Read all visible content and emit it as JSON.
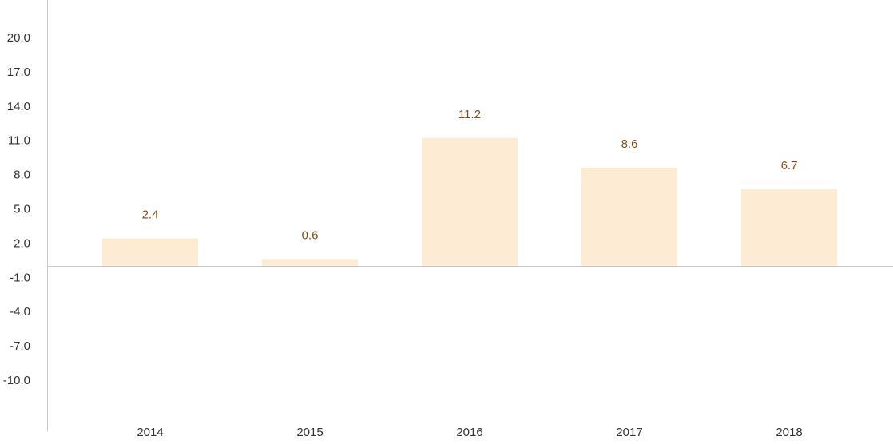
{
  "colors": {
    "bar": "#fdebd3",
    "data_label": "#8a4b14",
    "axis": "#c8c8c8",
    "text": "#333333"
  },
  "chart_data": {
    "type": "bar",
    "title": "",
    "xlabel": "",
    "ylabel": "",
    "categories": [
      "2014",
      "2015",
      "2016",
      "2017",
      "2018"
    ],
    "values": [
      2.4,
      0.6,
      11.2,
      8.6,
      6.7
    ],
    "data_labels": [
      "2.4",
      "0.6",
      "11.2",
      "8.6",
      "6.7"
    ],
    "yticks": [
      20.0,
      17.0,
      14.0,
      11.0,
      8.0,
      5.0,
      2.0,
      -1.0,
      -4.0,
      -7.0,
      -10.0
    ],
    "ytick_labels": [
      "20.0",
      "17.0",
      "14.0",
      "11.0",
      "8.0",
      "5.0",
      "2.0",
      "-1.0",
      "-4.0",
      "-7.0",
      "-10.0"
    ],
    "grid": false,
    "legend": "none"
  }
}
